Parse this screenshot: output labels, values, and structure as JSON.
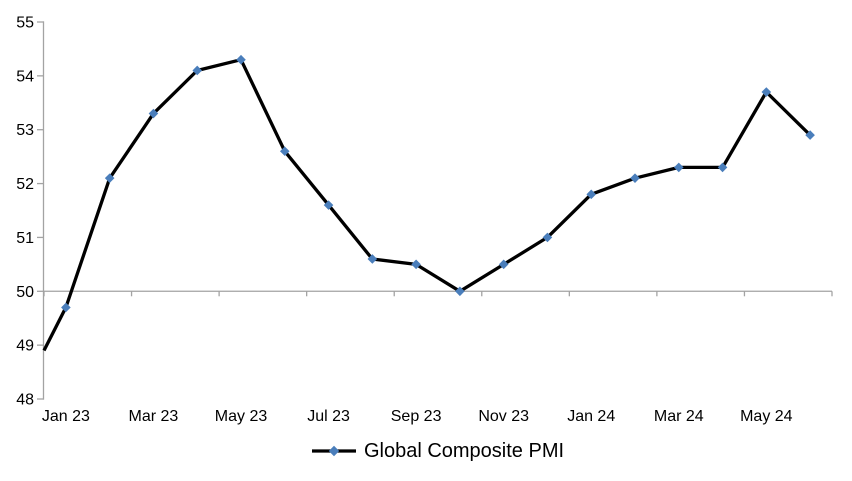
{
  "chart_data": {
    "type": "line",
    "title": "",
    "categories": [
      "Jan 23",
      "Feb 23",
      "Mar 23",
      "Apr 23",
      "May 23",
      "Jun 23",
      "Jul 23",
      "Aug 23",
      "Sep 23",
      "Oct 23",
      "Nov 23",
      "Dec 23",
      "Jan 24",
      "Feb 24",
      "Mar 24",
      "Apr 24",
      "May 24",
      "Jun 24"
    ],
    "series": [
      {
        "name": "Global Composite PMI",
        "values": [
          49.7,
          52.1,
          53.3,
          54.1,
          54.3,
          52.6,
          51.6,
          50.6,
          50.5,
          50.0,
          50.5,
          51.0,
          51.8,
          52.1,
          52.3,
          52.3,
          53.7,
          52.9
        ],
        "line_color": "#000000",
        "marker": "diamond",
        "marker_color": "#4A7EBB"
      }
    ],
    "edge_start_value": 48.9,
    "ylim": [
      48,
      55
    ],
    "y_tick_labels": [
      "48",
      "49",
      "50",
      "51",
      "52",
      "53",
      "54",
      "55"
    ],
    "x_tick_labels": [
      "Jan 23",
      "Mar 23",
      "May 23",
      "Jul 23",
      "Sep 23",
      "Nov 23",
      "Jan 24",
      "Mar 24",
      "May 24"
    ],
    "x_tick_every": 2,
    "x_axis_cross_value": 50,
    "grid": false,
    "legend_position": "bottom-center",
    "axis_color": "#A3A3A3",
    "text_color": "#000000",
    "background_color": "#FFFFFF"
  }
}
